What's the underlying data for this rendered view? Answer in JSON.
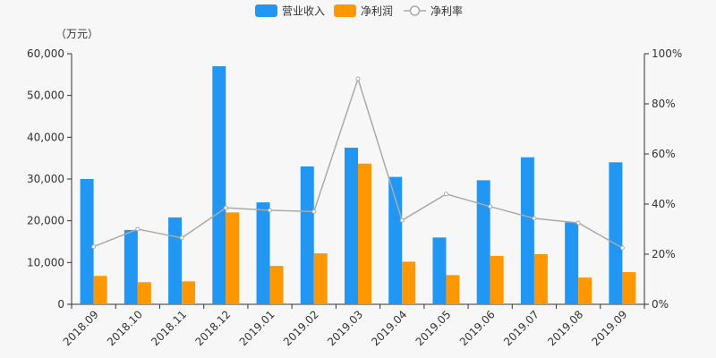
{
  "chart_data": {
    "type": "bar",
    "unit_label": "（万元）",
    "categories": [
      "2018.09",
      "2018.10",
      "2018.11",
      "2018.12",
      "2019.01",
      "2019.02",
      "2019.03",
      "2019.04",
      "2019.05",
      "2019.06",
      "2019.07",
      "2019.08",
      "2019.09"
    ],
    "series": [
      {
        "name": "营业收入",
        "type": "bar",
        "axis": "left",
        "color": "#2196f3",
        "values": [
          30000,
          17800,
          20800,
          57000,
          24400,
          33000,
          37500,
          30500,
          16000,
          29700,
          35200,
          19600,
          34000
        ]
      },
      {
        "name": "净利润",
        "type": "bar",
        "axis": "left",
        "color": "#ff9800",
        "values": [
          6800,
          5300,
          5500,
          22000,
          9200,
          12200,
          33700,
          10200,
          7000,
          11600,
          12000,
          6400,
          7700
        ]
      },
      {
        "name": "净利率",
        "type": "line",
        "axis": "right",
        "color": "#aaaaaa",
        "values": [
          23,
          30,
          26.5,
          38.5,
          37.5,
          37,
          90,
          33.5,
          44,
          39,
          34.3,
          32.5,
          22.5
        ]
      }
    ],
    "y_left": {
      "ticks": [
        "0",
        "10,000",
        "20,000",
        "30,000",
        "40,000",
        "50,000",
        "60,000"
      ],
      "ylim": [
        0,
        60000
      ]
    },
    "y_right": {
      "ticks": [
        "0%",
        "20%",
        "40%",
        "60%",
        "80%",
        "100%"
      ],
      "ylim": [
        0,
        100
      ]
    },
    "legend_position": "top"
  }
}
